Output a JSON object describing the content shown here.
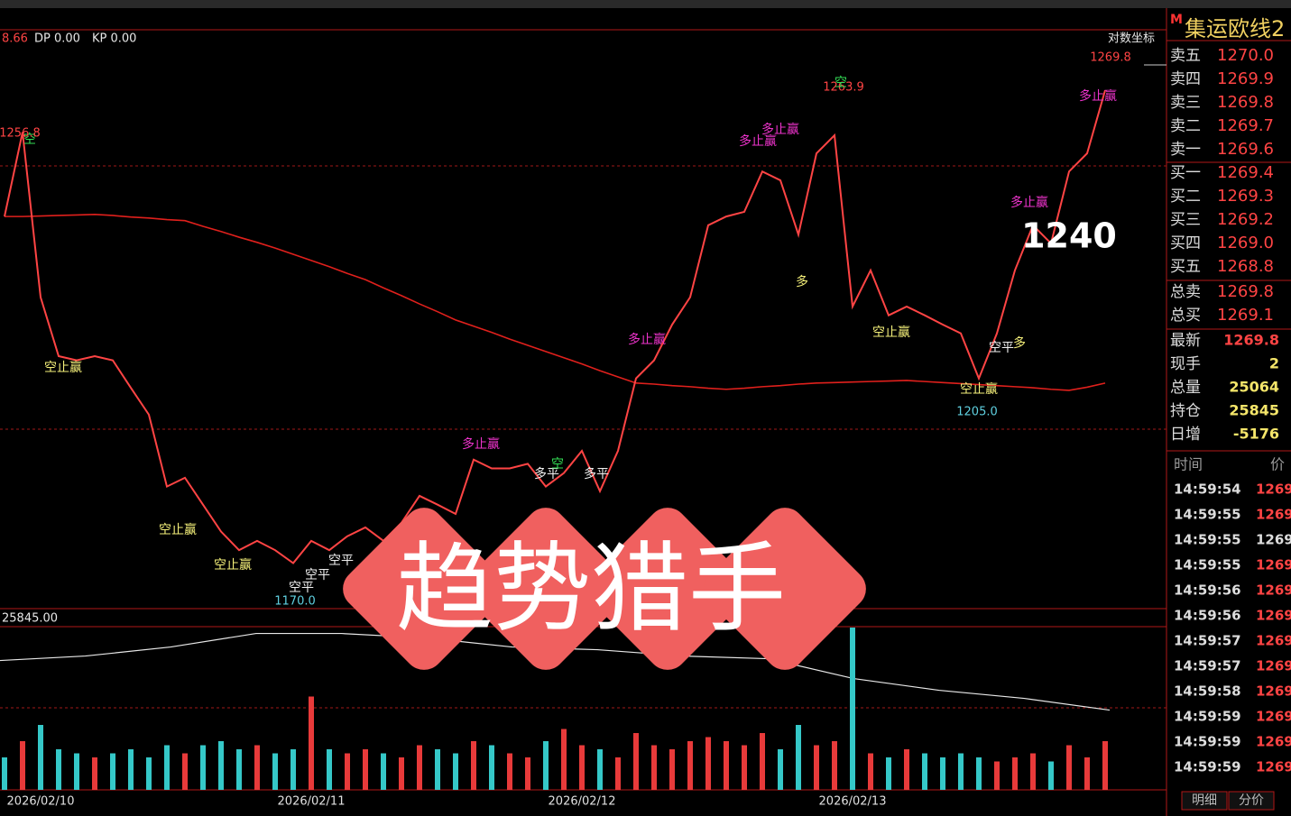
{
  "header": {
    "indicators": [
      "8.66",
      "DP 0.00",
      "KP 0.00"
    ],
    "scale_mode": "对数坐标"
  },
  "chart_data": [
    {
      "type": "line",
      "categories": [
        null,
        null,
        "2026/02/10",
        null,
        null,
        null,
        null,
        null,
        null,
        null,
        null,
        null,
        null,
        null,
        null,
        null,
        null,
        "2026/02/11",
        null,
        null,
        null,
        null,
        null,
        null,
        null,
        null,
        null,
        null,
        null,
        null,
        null,
        null,
        "2026/02/12",
        null,
        null,
        null,
        null,
        null,
        null,
        null,
        null,
        null,
        null,
        null,
        null,
        null,
        null,
        "2026/02/13",
        null,
        null,
        null,
        null,
        null,
        null,
        null,
        null,
        null,
        null,
        null,
        null,
        null,
        null
      ],
      "series": [
        {
          "color": "#ff4444",
          "values": [
            1240.5,
            1256.8,
            1224.9,
            1213.5,
            1212.7,
            1213.5,
            1212.7,
            1207.4,
            1202.2,
            1188.3,
            1190.0,
            1184.8,
            1179.6,
            1176.0,
            1177.8,
            1176.0,
            1173.5,
            1177.8,
            1176.0,
            1178.7,
            1180.4,
            1177.8,
            1181.3,
            1186.5,
            1184.8,
            1183.0,
            1193.5,
            1191.8,
            1191.8,
            1192.7,
            1188.3,
            1190.9,
            1195.2,
            1187.4,
            1195.2,
            1209.2,
            1212.7,
            1219.6,
            1224.9,
            1238.8,
            1240.5,
            1241.4,
            1249.2,
            1247.5,
            1237.0,
            1252.7,
            1256.2,
            1223.1,
            1230.1,
            1221.4,
            1223.1,
            1221.4,
            1219.6,
            1217.9,
            1209.2,
            1217.9,
            1230.1,
            1238.8,
            1235.3,
            1249.2,
            1252.7,
            1264.9
          ]
        },
        {
          "color": "#e0201c",
          "values": [
            1240.5,
            1240.5,
            1240.6,
            1240.7,
            1240.8,
            1240.9,
            1240.7,
            1240.4,
            1240.2,
            1239.9,
            1239.7,
            1238.6,
            1237.6,
            1236.5,
            1235.5,
            1234.4,
            1233.2,
            1232.0,
            1230.8,
            1229.5,
            1228.3,
            1226.7,
            1225.2,
            1223.6,
            1222.1,
            1220.5,
            1219.3,
            1218.1,
            1216.8,
            1215.6,
            1214.4,
            1213.2,
            1212.0,
            1210.7,
            1209.5,
            1208.3,
            1208.1,
            1207.8,
            1207.6,
            1207.3,
            1207.1,
            1207.3,
            1207.6,
            1207.8,
            1208.1,
            1208.3,
            1208.4,
            1208.5,
            1208.6,
            1208.7,
            1208.8,
            1208.6,
            1208.4,
            1208.2,
            1208.0,
            1207.8,
            1207.6,
            1207.4,
            1207.1,
            1206.9,
            1207.5,
            1208.3
          ]
        }
      ],
      "ylim": [
        1164.7,
        1276.6
      ]
    },
    {
      "type": "line",
      "label": "25845.00",
      "color": "#e8e8e8",
      "values": [
        29145,
        29445,
        30045,
        30945,
        30945,
        30645,
        30045,
        29865,
        29445,
        29265,
        27945,
        27165,
        26625,
        25845
      ],
      "ylim": [
        25700,
        31700
      ]
    },
    {
      "type": "bar",
      "up_color": "#e83a3a",
      "down_color": "#35c8c8",
      "values": [
        40,
        60,
        80,
        50,
        45,
        40,
        45,
        50,
        40,
        55,
        45,
        55,
        60,
        50,
        55,
        45,
        50,
        115,
        50,
        45,
        50,
        45,
        40,
        55,
        50,
        45,
        60,
        55,
        45,
        40,
        60,
        75,
        55,
        50,
        40,
        70,
        55,
        50,
        60,
        65,
        60,
        55,
        70,
        50,
        80,
        55,
        60,
        200,
        45,
        40,
        50,
        45,
        40,
        45,
        40,
        35,
        40,
        45,
        35,
        55,
        40,
        60
      ],
      "ylim": [
        0,
        200
      ]
    }
  ],
  "annotations": [
    {
      "text": "空",
      "color": "#33dd55"
    },
    {
      "text": "1256.8",
      "color": "#ff4444"
    },
    {
      "text": "空止赢",
      "color": "#f5f07a"
    },
    {
      "text": "空止赢",
      "color": "#f5f07a"
    },
    {
      "text": "空止赢",
      "color": "#f5f07a"
    },
    {
      "text": "空平",
      "color": "#f0f0f0"
    },
    {
      "text": "空平",
      "color": "#f0f0f0"
    },
    {
      "text": "空平",
      "color": "#f0f0f0"
    },
    {
      "text": "1170.0",
      "color": "#5fd0e0"
    },
    {
      "text": "多止赢",
      "color": "#ee33cc"
    },
    {
      "text": "多平",
      "color": "#f0f0f0"
    },
    {
      "text": "空",
      "color": "#33dd55"
    },
    {
      "text": "多平",
      "color": "#f0f0f0"
    },
    {
      "text": "多止赢",
      "color": "#ee33cc"
    },
    {
      "text": "多止赢",
      "color": "#ee33cc"
    },
    {
      "text": "多止赢",
      "color": "#ee33cc"
    },
    {
      "text": "1263.9",
      "color": "#ff4444"
    },
    {
      "text": "空",
      "color": "#33dd55"
    },
    {
      "text": "多",
      "color": "#f5f07a"
    },
    {
      "text": "空止赢",
      "color": "#f5f07a"
    },
    {
      "text": "空止赢",
      "color": "#f5f07a"
    },
    {
      "text": "1205.0",
      "color": "#5fd0e0"
    },
    {
      "text": "空平",
      "color": "#f0f0f0"
    },
    {
      "text": "多",
      "color": "#f5f07a"
    },
    {
      "text": "多止赢",
      "color": "#ee33cc"
    },
    {
      "text": "1240",
      "color": "#ffffff"
    },
    {
      "text": "多止赢",
      "color": "#ee33cc"
    },
    {
      "text": "1269.8",
      "color": "#ff4444"
    }
  ],
  "overlay_title": "趋势猎手",
  "quote": {
    "symbol_mark": "M",
    "symbol": "集运欧线2",
    "levels": [
      {
        "label": "卖五",
        "price": "1270.0"
      },
      {
        "label": "卖四",
        "price": "1269.9"
      },
      {
        "label": "卖三",
        "price": "1269.8"
      },
      {
        "label": "卖二",
        "price": "1269.7"
      },
      {
        "label": "卖一",
        "price": "1269.6"
      },
      {
        "label": "买一",
        "price": "1269.4"
      },
      {
        "label": "买二",
        "price": "1269.3"
      },
      {
        "label": "买三",
        "price": "1269.2"
      },
      {
        "label": "买四",
        "price": "1269.0"
      },
      {
        "label": "买五",
        "price": "1268.8"
      }
    ],
    "totals": [
      {
        "label": "总卖",
        "price": "1269.8"
      },
      {
        "label": "总买",
        "price": "1269.1"
      }
    ],
    "stats": [
      {
        "label": "最新",
        "value": "1269.8",
        "color": "#ff4444"
      },
      {
        "label": "现手",
        "value": "2",
        "color": "#f5e66a"
      },
      {
        "label": "总量",
        "value": "25064",
        "color": "#f5e66a"
      },
      {
        "label": "持仓",
        "value": "25845",
        "color": "#f5e66a"
      },
      {
        "label": "日增",
        "value": "-5176",
        "color": "#f5e66a"
      }
    ]
  },
  "trades": {
    "headers": [
      "时间",
      "价"
    ],
    "rows": [
      {
        "time": "14:59:54",
        "price": "1269.",
        "color": "#ff4444"
      },
      {
        "time": "14:59:55",
        "price": "1269.",
        "color": "#ff4444"
      },
      {
        "time": "14:59:55",
        "price": "1269.",
        "color": "#dddddd"
      },
      {
        "time": "14:59:55",
        "price": "1269.",
        "color": "#ff4444"
      },
      {
        "time": "14:59:56",
        "price": "1269.",
        "color": "#ff4444"
      },
      {
        "time": "14:59:56",
        "price": "1269.",
        "color": "#ff4444"
      },
      {
        "time": "14:59:57",
        "price": "1269.",
        "color": "#ff4444"
      },
      {
        "time": "14:59:57",
        "price": "1269.",
        "color": "#ff4444"
      },
      {
        "time": "14:59:58",
        "price": "1269.",
        "color": "#ff4444"
      },
      {
        "time": "14:59:59",
        "price": "1269.",
        "color": "#ff4444"
      },
      {
        "time": "14:59:59",
        "price": "1269.",
        "color": "#ff4444"
      },
      {
        "time": "14:59:59",
        "price": "1269.",
        "color": "#ff4444"
      }
    ],
    "tabs": [
      "明细",
      "分价"
    ]
  }
}
